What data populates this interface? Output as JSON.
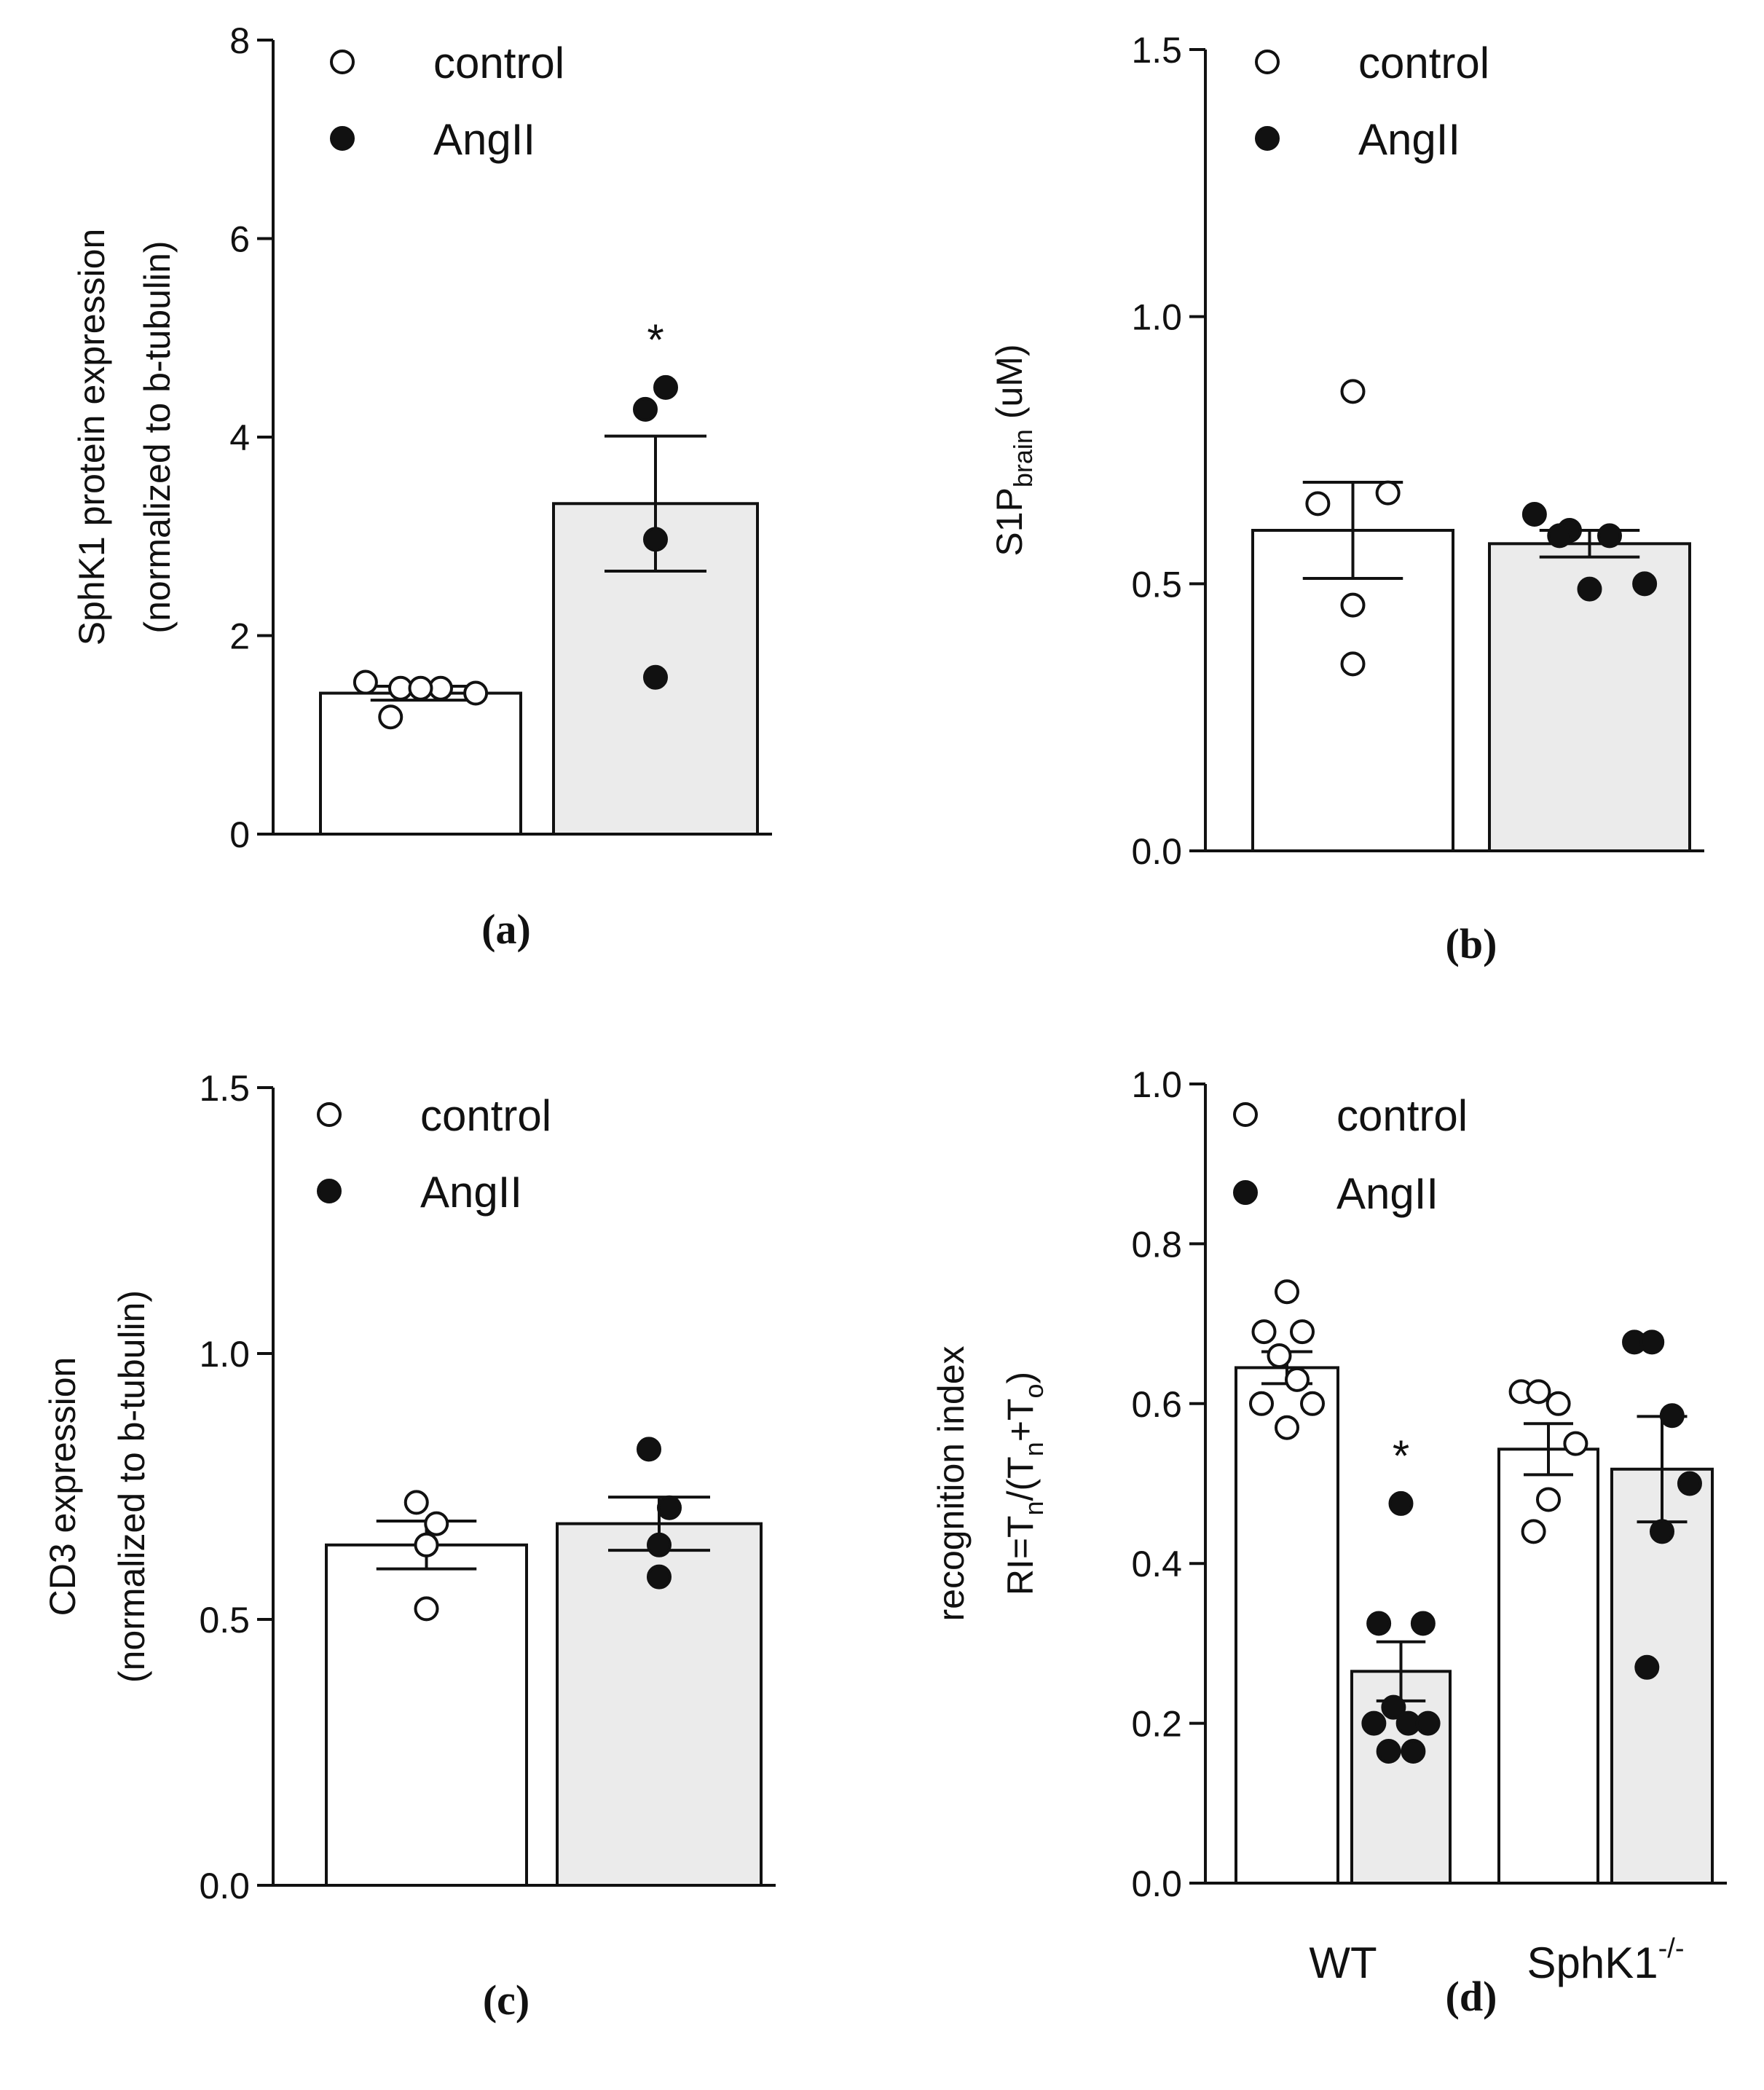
{
  "colors": {
    "control_fill": "#ffffff",
    "angii_fill": "#ebebeb",
    "ink": "#111111"
  },
  "chart_data": [
    {
      "panel": "(a)",
      "type": "bar",
      "ylabel_lines": [
        "SphK1 protein expression",
        "(normalized to b-tubulin)"
      ],
      "ylim": [
        0,
        8
      ],
      "yticks": [
        "0",
        "2",
        "4",
        "6",
        "8"
      ],
      "ytick_values": [
        0,
        2,
        4,
        6,
        8
      ],
      "legend": [
        "control",
        "AngII"
      ],
      "series": [
        {
          "name": "control",
          "mean": 1.42,
          "sem": 0.07,
          "points": [
            1.53,
            1.47,
            1.47,
            1.42,
            1.47,
            1.18
          ]
        },
        {
          "name": "AngII",
          "mean": 3.33,
          "sem": 0.68,
          "points": [
            4.28,
            4.5,
            2.97,
            1.58
          ],
          "annotation": "*"
        }
      ]
    },
    {
      "panel": "(b)",
      "type": "bar",
      "ylabel_main": "S1P",
      "ylabel_sub": "brain",
      "ylabel_tail": " (uM)",
      "ylim": [
        0,
        1.5
      ],
      "yticks": [
        "0.0",
        "0.5",
        "1.0",
        "1.5"
      ],
      "ytick_values": [
        0,
        0.5,
        1.0,
        1.5
      ],
      "legend": [
        "control",
        "AngII"
      ],
      "series": [
        {
          "name": "control",
          "mean": 0.6,
          "sem": 0.09,
          "points": [
            0.86,
            0.65,
            0.67,
            0.46,
            0.35
          ]
        },
        {
          "name": "AngII",
          "mean": 0.575,
          "sem": 0.025,
          "points": [
            0.63,
            0.6,
            0.59,
            0.5,
            0.49,
            0.59
          ]
        }
      ]
    },
    {
      "panel": "(c)",
      "type": "bar",
      "ylabel_lines": [
        "CD3 expression",
        "(normalized to b-tubulin)"
      ],
      "ylim": [
        0,
        1.5
      ],
      "yticks": [
        "0.0",
        "0.5",
        "1.0",
        "1.5"
      ],
      "ytick_values": [
        0,
        0.5,
        1.0,
        1.5
      ],
      "legend": [
        "control",
        "AngII"
      ],
      "series": [
        {
          "name": "control",
          "mean": 0.64,
          "sem": 0.045,
          "points": [
            0.72,
            0.68,
            0.64,
            0.52
          ]
        },
        {
          "name": "AngII",
          "mean": 0.68,
          "sem": 0.05,
          "points": [
            0.82,
            0.71,
            0.64,
            0.58
          ]
        }
      ]
    },
    {
      "panel": "(d)",
      "type": "bar",
      "ylabel_line1": "recognition index",
      "ylabel_line2": [
        {
          "t": "RI=T",
          "s": ""
        },
        {
          "t": "n",
          "s": "sub"
        },
        {
          "t": "/(T",
          "s": ""
        },
        {
          "t": "n",
          "s": "sub"
        },
        {
          "t": "+T",
          "s": ""
        },
        {
          "t": "o",
          "s": "sub"
        },
        {
          "t": ")",
          "s": ""
        }
      ],
      "ylim": [
        0,
        1.0
      ],
      "yticks": [
        "0.0",
        "0.2",
        "0.4",
        "0.6",
        "0.8",
        "1.0"
      ],
      "ytick_values": [
        0,
        0.2,
        0.4,
        0.6,
        0.8,
        1.0
      ],
      "legend": [
        "control",
        "AngII"
      ],
      "categories": [
        "WT",
        "SphK1"
      ],
      "category_superscript": "-/-",
      "series": [
        {
          "name": "control",
          "group": "WT",
          "mean": 0.645,
          "sem": 0.02,
          "points": [
            0.74,
            0.69,
            0.69,
            0.66,
            0.63,
            0.6,
            0.6,
            0.57
          ]
        },
        {
          "name": "AngII",
          "group": "WT",
          "mean": 0.265,
          "sem": 0.037,
          "points": [
            0.475,
            0.325,
            0.325,
            0.22,
            0.2,
            0.2,
            0.2,
            0.165,
            0.165
          ],
          "annotation": "*"
        },
        {
          "name": "control",
          "group": "SphK1",
          "mean": 0.543,
          "sem": 0.032,
          "points": [
            0.615,
            0.615,
            0.6,
            0.55,
            0.48,
            0.44
          ]
        },
        {
          "name": "AngII",
          "group": "SphK1",
          "mean": 0.518,
          "sem": 0.066,
          "points": [
            0.677,
            0.677,
            0.585,
            0.5,
            0.44,
            0.27
          ]
        }
      ]
    }
  ]
}
